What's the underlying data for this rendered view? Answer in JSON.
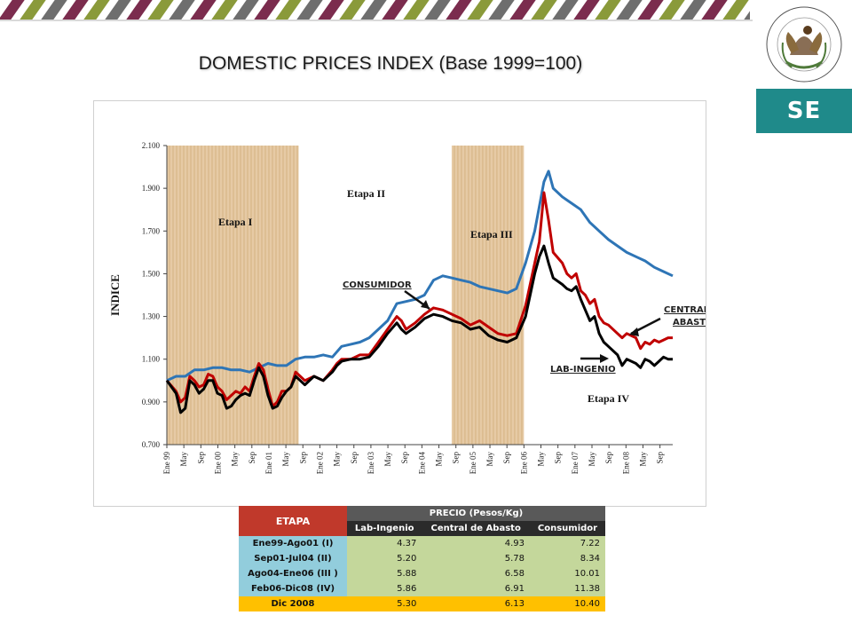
{
  "header": {
    "title": "DOMESTIC PRICES INDEX (Base 1999=100)",
    "logo_text": "SE",
    "stripe_colors": [
      "#7b2c4e",
      "#8a9a3a",
      "#6e6e6e"
    ]
  },
  "chart_data": {
    "type": "line",
    "ylabel": "INDICE",
    "ylim": [
      0.7,
      2.1
    ],
    "yticks": [
      "2.100",
      "1.900",
      "1.700",
      "1.500",
      "1.300",
      "1.100",
      "0.900",
      "0.700"
    ],
    "x_labels": [
      "Ene 99",
      "May",
      "Sep",
      "Ene 00",
      "May",
      "Sep",
      "Ene 01",
      "May",
      "Sep",
      "Ene 02",
      "May",
      "Sep",
      "Ene 03",
      "May",
      "Sep",
      "Ene 04",
      "May",
      "Sep",
      "Ene 05",
      "May",
      "Sep",
      "Ene 06",
      "May",
      "Sep",
      "Ene 07",
      "May",
      "Sep",
      "Ene 08",
      "May",
      "Sep"
    ],
    "stage_labels": [
      "Etapa I",
      "Etapa II",
      "Etapa III",
      "Etapa IV"
    ],
    "shaded_stages": [
      {
        "from": "Ene 99",
        "to": "Ago 01"
      },
      {
        "from": "Ago 04",
        "to": "Ene 06"
      }
    ],
    "annotations": [
      "CONSUMIDOR",
      "CENTRAL DE ABASTO",
      "LAB-INGENIO"
    ],
    "series": [
      {
        "name": "CONSUMIDOR",
        "color": "#2e75b6",
        "points": [
          [
            0,
            1.0
          ],
          [
            2,
            1.02
          ],
          [
            4,
            1.02
          ],
          [
            6,
            1.05
          ],
          [
            8,
            1.05
          ],
          [
            10,
            1.06
          ],
          [
            12,
            1.06
          ],
          [
            14,
            1.05
          ],
          [
            16,
            1.05
          ],
          [
            18,
            1.04
          ],
          [
            20,
            1.06
          ],
          [
            22,
            1.08
          ],
          [
            24,
            1.07
          ],
          [
            26,
            1.07
          ],
          [
            28,
            1.1
          ],
          [
            30,
            1.11
          ],
          [
            32,
            1.11
          ],
          [
            34,
            1.12
          ],
          [
            36,
            1.11
          ],
          [
            38,
            1.16
          ],
          [
            40,
            1.17
          ],
          [
            42,
            1.18
          ],
          [
            44,
            1.2
          ],
          [
            46,
            1.24
          ],
          [
            48,
            1.28
          ],
          [
            50,
            1.36
          ],
          [
            52,
            1.37
          ],
          [
            54,
            1.38
          ],
          [
            56,
            1.4
          ],
          [
            58,
            1.47
          ],
          [
            60,
            1.49
          ],
          [
            62,
            1.48
          ],
          [
            64,
            1.47
          ],
          [
            66,
            1.46
          ],
          [
            68,
            1.44
          ],
          [
            70,
            1.43
          ],
          [
            72,
            1.42
          ],
          [
            74,
            1.41
          ],
          [
            76,
            1.43
          ],
          [
            78,
            1.55
          ],
          [
            80,
            1.7
          ],
          [
            82,
            1.93
          ],
          [
            83,
            1.98
          ],
          [
            84,
            1.9
          ],
          [
            86,
            1.86
          ],
          [
            88,
            1.83
          ],
          [
            90,
            1.8
          ],
          [
            92,
            1.74
          ],
          [
            94,
            1.7
          ],
          [
            96,
            1.66
          ],
          [
            98,
            1.63
          ],
          [
            100,
            1.6
          ],
          [
            102,
            1.58
          ],
          [
            104,
            1.56
          ],
          [
            106,
            1.53
          ],
          [
            108,
            1.51
          ],
          [
            110,
            1.49
          ]
        ]
      },
      {
        "name": "CENTRAL DE ABASTO",
        "color": "#c00000",
        "points": [
          [
            0,
            1.0
          ],
          [
            2,
            0.95
          ],
          [
            3,
            0.9
          ],
          [
            4,
            0.92
          ],
          [
            5,
            1.02
          ],
          [
            6,
            1.0
          ],
          [
            7,
            0.97
          ],
          [
            8,
            0.98
          ],
          [
            9,
            1.03
          ],
          [
            10,
            1.02
          ],
          [
            11,
            0.97
          ],
          [
            12,
            0.95
          ],
          [
            13,
            0.91
          ],
          [
            14,
            0.93
          ],
          [
            15,
            0.95
          ],
          [
            16,
            0.94
          ],
          [
            17,
            0.97
          ],
          [
            18,
            0.95
          ],
          [
            19,
            1.02
          ],
          [
            20,
            1.08
          ],
          [
            21,
            1.05
          ],
          [
            22,
            0.96
          ],
          [
            23,
            0.88
          ],
          [
            24,
            0.9
          ],
          [
            25,
            0.95
          ],
          [
            26,
            0.95
          ],
          [
            27,
            0.97
          ],
          [
            28,
            1.04
          ],
          [
            29,
            1.02
          ],
          [
            30,
            1.0
          ],
          [
            32,
            1.02
          ],
          [
            34,
            1.0
          ],
          [
            36,
            1.05
          ],
          [
            37,
            1.08
          ],
          [
            38,
            1.1
          ],
          [
            40,
            1.1
          ],
          [
            42,
            1.12
          ],
          [
            44,
            1.12
          ],
          [
            46,
            1.18
          ],
          [
            48,
            1.24
          ],
          [
            50,
            1.3
          ],
          [
            51,
            1.28
          ],
          [
            52,
            1.24
          ],
          [
            54,
            1.27
          ],
          [
            56,
            1.31
          ],
          [
            58,
            1.34
          ],
          [
            60,
            1.33
          ],
          [
            62,
            1.31
          ],
          [
            64,
            1.29
          ],
          [
            66,
            1.26
          ],
          [
            68,
            1.28
          ],
          [
            70,
            1.25
          ],
          [
            72,
            1.22
          ],
          [
            74,
            1.21
          ],
          [
            76,
            1.22
          ],
          [
            78,
            1.35
          ],
          [
            80,
            1.55
          ],
          [
            81,
            1.65
          ],
          [
            82,
            1.88
          ],
          [
            83,
            1.75
          ],
          [
            84,
            1.6
          ],
          [
            86,
            1.55
          ],
          [
            87,
            1.5
          ],
          [
            88,
            1.48
          ],
          [
            89,
            1.5
          ],
          [
            90,
            1.42
          ],
          [
            91,
            1.4
          ],
          [
            92,
            1.36
          ],
          [
            93,
            1.38
          ],
          [
            94,
            1.3
          ],
          [
            95,
            1.27
          ],
          [
            96,
            1.26
          ],
          [
            98,
            1.22
          ],
          [
            99,
            1.2
          ],
          [
            100,
            1.22
          ],
          [
            102,
            1.2
          ],
          [
            103,
            1.15
          ],
          [
            104,
            1.18
          ],
          [
            105,
            1.17
          ],
          [
            106,
            1.19
          ],
          [
            107,
            1.18
          ],
          [
            108,
            1.19
          ],
          [
            109,
            1.2
          ],
          [
            110,
            1.2
          ]
        ]
      },
      {
        "name": "LAB-INGENIO",
        "color": "#000000",
        "points": [
          [
            0,
            1.0
          ],
          [
            2,
            0.94
          ],
          [
            3,
            0.85
          ],
          [
            4,
            0.87
          ],
          [
            5,
            1.0
          ],
          [
            6,
            0.98
          ],
          [
            7,
            0.94
          ],
          [
            8,
            0.96
          ],
          [
            9,
            1.0
          ],
          [
            10,
            1.0
          ],
          [
            11,
            0.94
          ],
          [
            12,
            0.93
          ],
          [
            13,
            0.87
          ],
          [
            14,
            0.88
          ],
          [
            15,
            0.91
          ],
          [
            16,
            0.93
          ],
          [
            17,
            0.94
          ],
          [
            18,
            0.93
          ],
          [
            19,
            1.0
          ],
          [
            20,
            1.06
          ],
          [
            21,
            1.02
          ],
          [
            22,
            0.93
          ],
          [
            23,
            0.87
          ],
          [
            24,
            0.88
          ],
          [
            25,
            0.92
          ],
          [
            26,
            0.95
          ],
          [
            27,
            0.97
          ],
          [
            28,
            1.02
          ],
          [
            29,
            1.0
          ],
          [
            30,
            0.98
          ],
          [
            32,
            1.02
          ],
          [
            34,
            1.0
          ],
          [
            36,
            1.04
          ],
          [
            37,
            1.07
          ],
          [
            38,
            1.09
          ],
          [
            40,
            1.1
          ],
          [
            42,
            1.1
          ],
          [
            44,
            1.11
          ],
          [
            46,
            1.16
          ],
          [
            48,
            1.22
          ],
          [
            50,
            1.27
          ],
          [
            51,
            1.24
          ],
          [
            52,
            1.22
          ],
          [
            54,
            1.25
          ],
          [
            56,
            1.29
          ],
          [
            58,
            1.31
          ],
          [
            60,
            1.3
          ],
          [
            62,
            1.28
          ],
          [
            64,
            1.27
          ],
          [
            66,
            1.24
          ],
          [
            68,
            1.25
          ],
          [
            70,
            1.21
          ],
          [
            72,
            1.19
          ],
          [
            74,
            1.18
          ],
          [
            76,
            1.2
          ],
          [
            78,
            1.3
          ],
          [
            80,
            1.5
          ],
          [
            81,
            1.58
          ],
          [
            82,
            1.63
          ],
          [
            83,
            1.55
          ],
          [
            84,
            1.48
          ],
          [
            86,
            1.45
          ],
          [
            87,
            1.43
          ],
          [
            88,
            1.42
          ],
          [
            89,
            1.44
          ],
          [
            90,
            1.38
          ],
          [
            91,
            1.33
          ],
          [
            92,
            1.28
          ],
          [
            93,
            1.3
          ],
          [
            94,
            1.22
          ],
          [
            95,
            1.18
          ],
          [
            96,
            1.16
          ],
          [
            98,
            1.12
          ],
          [
            99,
            1.07
          ],
          [
            100,
            1.1
          ],
          [
            102,
            1.08
          ],
          [
            103,
            1.06
          ],
          [
            104,
            1.1
          ],
          [
            105,
            1.09
          ],
          [
            106,
            1.07
          ],
          [
            107,
            1.09
          ],
          [
            108,
            1.11
          ],
          [
            109,
            1.1
          ],
          [
            110,
            1.1
          ]
        ]
      }
    ]
  },
  "table": {
    "etapa_header": "ETAPA",
    "precio_header": "PRECIO (Pesos/Kg)",
    "columns": [
      "Lab-Ingenio",
      "Central de Abasto",
      "Consumidor"
    ],
    "rows": [
      {
        "label": "Ene99-Ago01 (I)",
        "values": [
          "4.37",
          "4.93",
          "7.22"
        ]
      },
      {
        "label": "Sep01-Jul04 (II)",
        "values": [
          "5.20",
          "5.78",
          "8.34"
        ]
      },
      {
        "label": "Ago04-Ene06 (III )",
        "values": [
          "5.88",
          "6.58",
          "10.01"
        ]
      },
      {
        "label": "Feb06-Dic08 (IV)",
        "values": [
          "5.86",
          "6.91",
          "11.38"
        ]
      },
      {
        "label": "Dic 2008",
        "values": [
          "5.30",
          "6.13",
          "10.40"
        ]
      }
    ]
  }
}
